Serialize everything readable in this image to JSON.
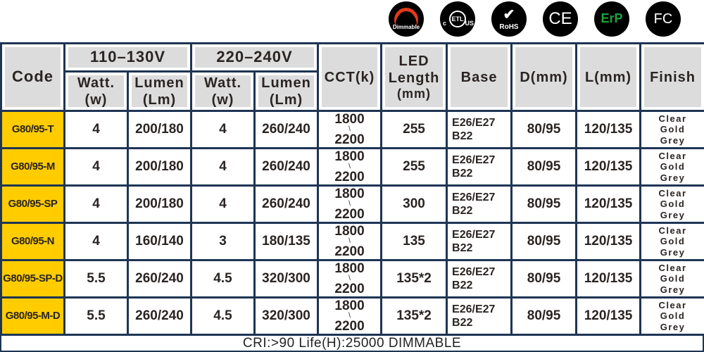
{
  "certifications": [
    {
      "icon": "dimmable-icon",
      "label": "Dimmable"
    },
    {
      "icon": "etl-icon",
      "label": "ETL",
      "left": "c",
      "right": "US"
    },
    {
      "icon": "rohs-icon",
      "label": "RoHS"
    },
    {
      "icon": "ce-icon",
      "label": "CE"
    },
    {
      "icon": "erp-icon",
      "label": "ErP",
      "color": "#1aa33a"
    },
    {
      "icon": "fcc-icon",
      "label": "FC"
    }
  ],
  "headers": {
    "code": "Code",
    "v1": "110–130V",
    "v2": "220–240V",
    "watt": "Watt.",
    "watt_unit": "(w)",
    "lumen": "Lumen",
    "lumen_unit": "(Lm)",
    "cct": "CCT(k)",
    "led": "LED",
    "led2": "Length",
    "led_unit": "(mm)",
    "base": "Base",
    "d": "D(mm)",
    "l": "L(mm)",
    "finish": "Finish"
  },
  "rows": [
    {
      "code": "G80/95-T",
      "w1": "4",
      "lm1": "200/180",
      "w2": "4",
      "lm2": "260/240",
      "cct_low": "1800",
      "cct_high": "2200",
      "led": "255",
      "base1": "E26/E27",
      "base2": "B22",
      "d": "80/95",
      "l": "120/135",
      "f1": "Clear",
      "f2": "Gold",
      "f3": "Grey"
    },
    {
      "code": "G80/95-M",
      "w1": "4",
      "lm1": "200/180",
      "w2": "4",
      "lm2": "260/240",
      "cct_low": "1800",
      "cct_high": "2200",
      "led": "255",
      "base1": "E26/E27",
      "base2": "B22",
      "d": "80/95",
      "l": "120/135",
      "f1": "Clear",
      "f2": "Gold",
      "f3": "Grey"
    },
    {
      "code": "G80/95-SP",
      "w1": "4",
      "lm1": "200/180",
      "w2": "4",
      "lm2": "260/240",
      "cct_low": "1800",
      "cct_high": "2200",
      "led": "300",
      "base1": "E26/E27",
      "base2": "B22",
      "d": "80/95",
      "l": "120/135",
      "f1": "Clear",
      "f2": "Gold",
      "f3": "Grey"
    },
    {
      "code": "G80/95-N",
      "w1": "4",
      "lm1": "160/140",
      "w2": "3",
      "lm2": "180/135",
      "cct_low": "1800",
      "cct_high": "2200",
      "led": "135",
      "base1": "E26/E27",
      "base2": "B22",
      "d": "80/95",
      "l": "120/135",
      "f1": "Clear",
      "f2": "Gold",
      "f3": "Grey"
    },
    {
      "code": "G80/95-SP-D",
      "w1": "5.5",
      "lm1": "260/240",
      "w2": "4.5",
      "lm2": "320/300",
      "cct_low": "1800",
      "cct_high": "2200",
      "led": "135*2",
      "base1": "E26/E27",
      "base2": "B22",
      "d": "80/95",
      "l": "120/135",
      "f1": "Clear",
      "f2": "Gold",
      "f3": "Grey"
    },
    {
      "code": "G80/95-M-D",
      "w1": "5.5",
      "lm1": "260/240",
      "w2": "4.5",
      "lm2": "320/300",
      "cct_low": "1800",
      "cct_high": "2200",
      "led": "135*2",
      "base1": "E26/E27",
      "base2": "B22",
      "d": "80/95",
      "l": "120/135",
      "f1": "Clear",
      "f2": "Gold",
      "f3": "Grey"
    }
  ],
  "cct_separator": "\\",
  "footer": "CRI:>90   Life(H):25000  DIMMABLE",
  "colors": {
    "grid": "#1e3554",
    "header_bg": "#dcdcdc",
    "code_bg": "#ffcc00"
  }
}
